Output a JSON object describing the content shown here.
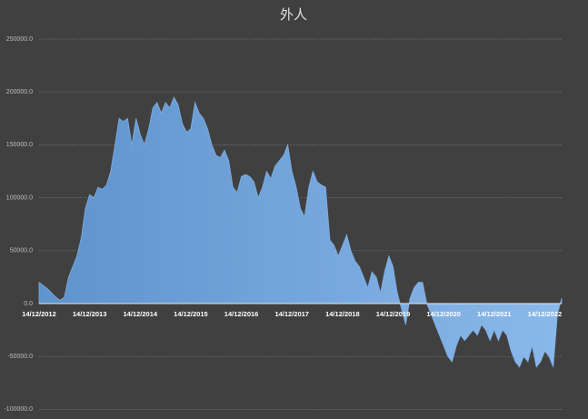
{
  "chart_data": {
    "type": "area",
    "title": "外人",
    "categories": [
      "14/12/2012",
      null,
      null,
      null,
      null,
      null,
      null,
      null,
      null,
      null,
      null,
      null,
      "14/12/2013",
      null,
      null,
      null,
      null,
      null,
      null,
      null,
      null,
      null,
      null,
      null,
      "14/12/2014",
      null,
      null,
      null,
      null,
      null,
      null,
      null,
      null,
      null,
      null,
      null,
      "14/12/2015",
      null,
      null,
      null,
      null,
      null,
      null,
      null,
      null,
      null,
      null,
      null,
      "14/12/2016",
      null,
      null,
      null,
      null,
      null,
      null,
      null,
      null,
      null,
      null,
      null,
      "14/12/2017",
      null,
      null,
      null,
      null,
      null,
      null,
      null,
      null,
      null,
      null,
      null,
      "14/12/2018",
      null,
      null,
      null,
      null,
      null,
      null,
      null,
      null,
      null,
      null,
      null,
      "14/12/2019",
      null,
      null,
      null,
      null,
      null,
      null,
      null,
      null,
      null,
      null,
      null,
      "14/12/2020",
      null,
      null,
      null,
      null,
      null,
      null,
      null,
      null,
      null,
      null,
      null,
      "14/12/2021",
      null,
      null,
      null,
      null,
      null,
      null,
      null,
      null,
      null,
      null,
      null,
      "14/12/2022",
      null,
      null,
      null,
      null
    ],
    "values": [
      20000,
      17000,
      14000,
      10000,
      6000,
      3000,
      6000,
      25000,
      35000,
      45000,
      62000,
      90000,
      103000,
      100000,
      110000,
      108000,
      112000,
      125000,
      150000,
      175000,
      172000,
      175000,
      150000,
      175000,
      160000,
      150000,
      165000,
      185000,
      190000,
      180000,
      190000,
      185000,
      195000,
      188000,
      170000,
      162000,
      165000,
      190000,
      180000,
      175000,
      165000,
      150000,
      140000,
      138000,
      145000,
      135000,
      110000,
      105000,
      120000,
      122000,
      120000,
      115000,
      100000,
      110000,
      125000,
      118000,
      130000,
      135000,
      140000,
      150000,
      125000,
      110000,
      90000,
      82000,
      110000,
      125000,
      115000,
      112000,
      110000,
      60000,
      55000,
      45000,
      55000,
      65000,
      50000,
      40000,
      35000,
      25000,
      15000,
      30000,
      25000,
      10000,
      30000,
      45000,
      35000,
      10000,
      -5000,
      -20000,
      5000,
      15000,
      20000,
      20000,
      0,
      -10000,
      -20000,
      -30000,
      -40000,
      -50000,
      -55000,
      -40000,
      -30000,
      -35000,
      -30000,
      -25000,
      -30000,
      -20000,
      -25000,
      -35000,
      -25000,
      -35000,
      -25000,
      -30000,
      -45000,
      -55000,
      -60000,
      -50000,
      -55000,
      -40000,
      -60000,
      -55000,
      -45000,
      -50000,
      -60000,
      -10000,
      5000
    ],
    "color": "#7eaee2",
    "ylim": [
      -100000,
      250000
    ],
    "yticks": [
      {
        "value": -100000,
        "label": "-100000.0"
      },
      {
        "value": -50000,
        "label": "-50000.0"
      },
      {
        "value": 0,
        "label": "0.0"
      },
      {
        "value": 50000,
        "label": "50000.0"
      },
      {
        "value": 100000,
        "label": "100000.0"
      },
      {
        "value": 150000,
        "label": "150000.0"
      },
      {
        "value": 200000,
        "label": "200000.0"
      },
      {
        "value": 250000,
        "label": "250000.0"
      }
    ],
    "grid": true
  }
}
